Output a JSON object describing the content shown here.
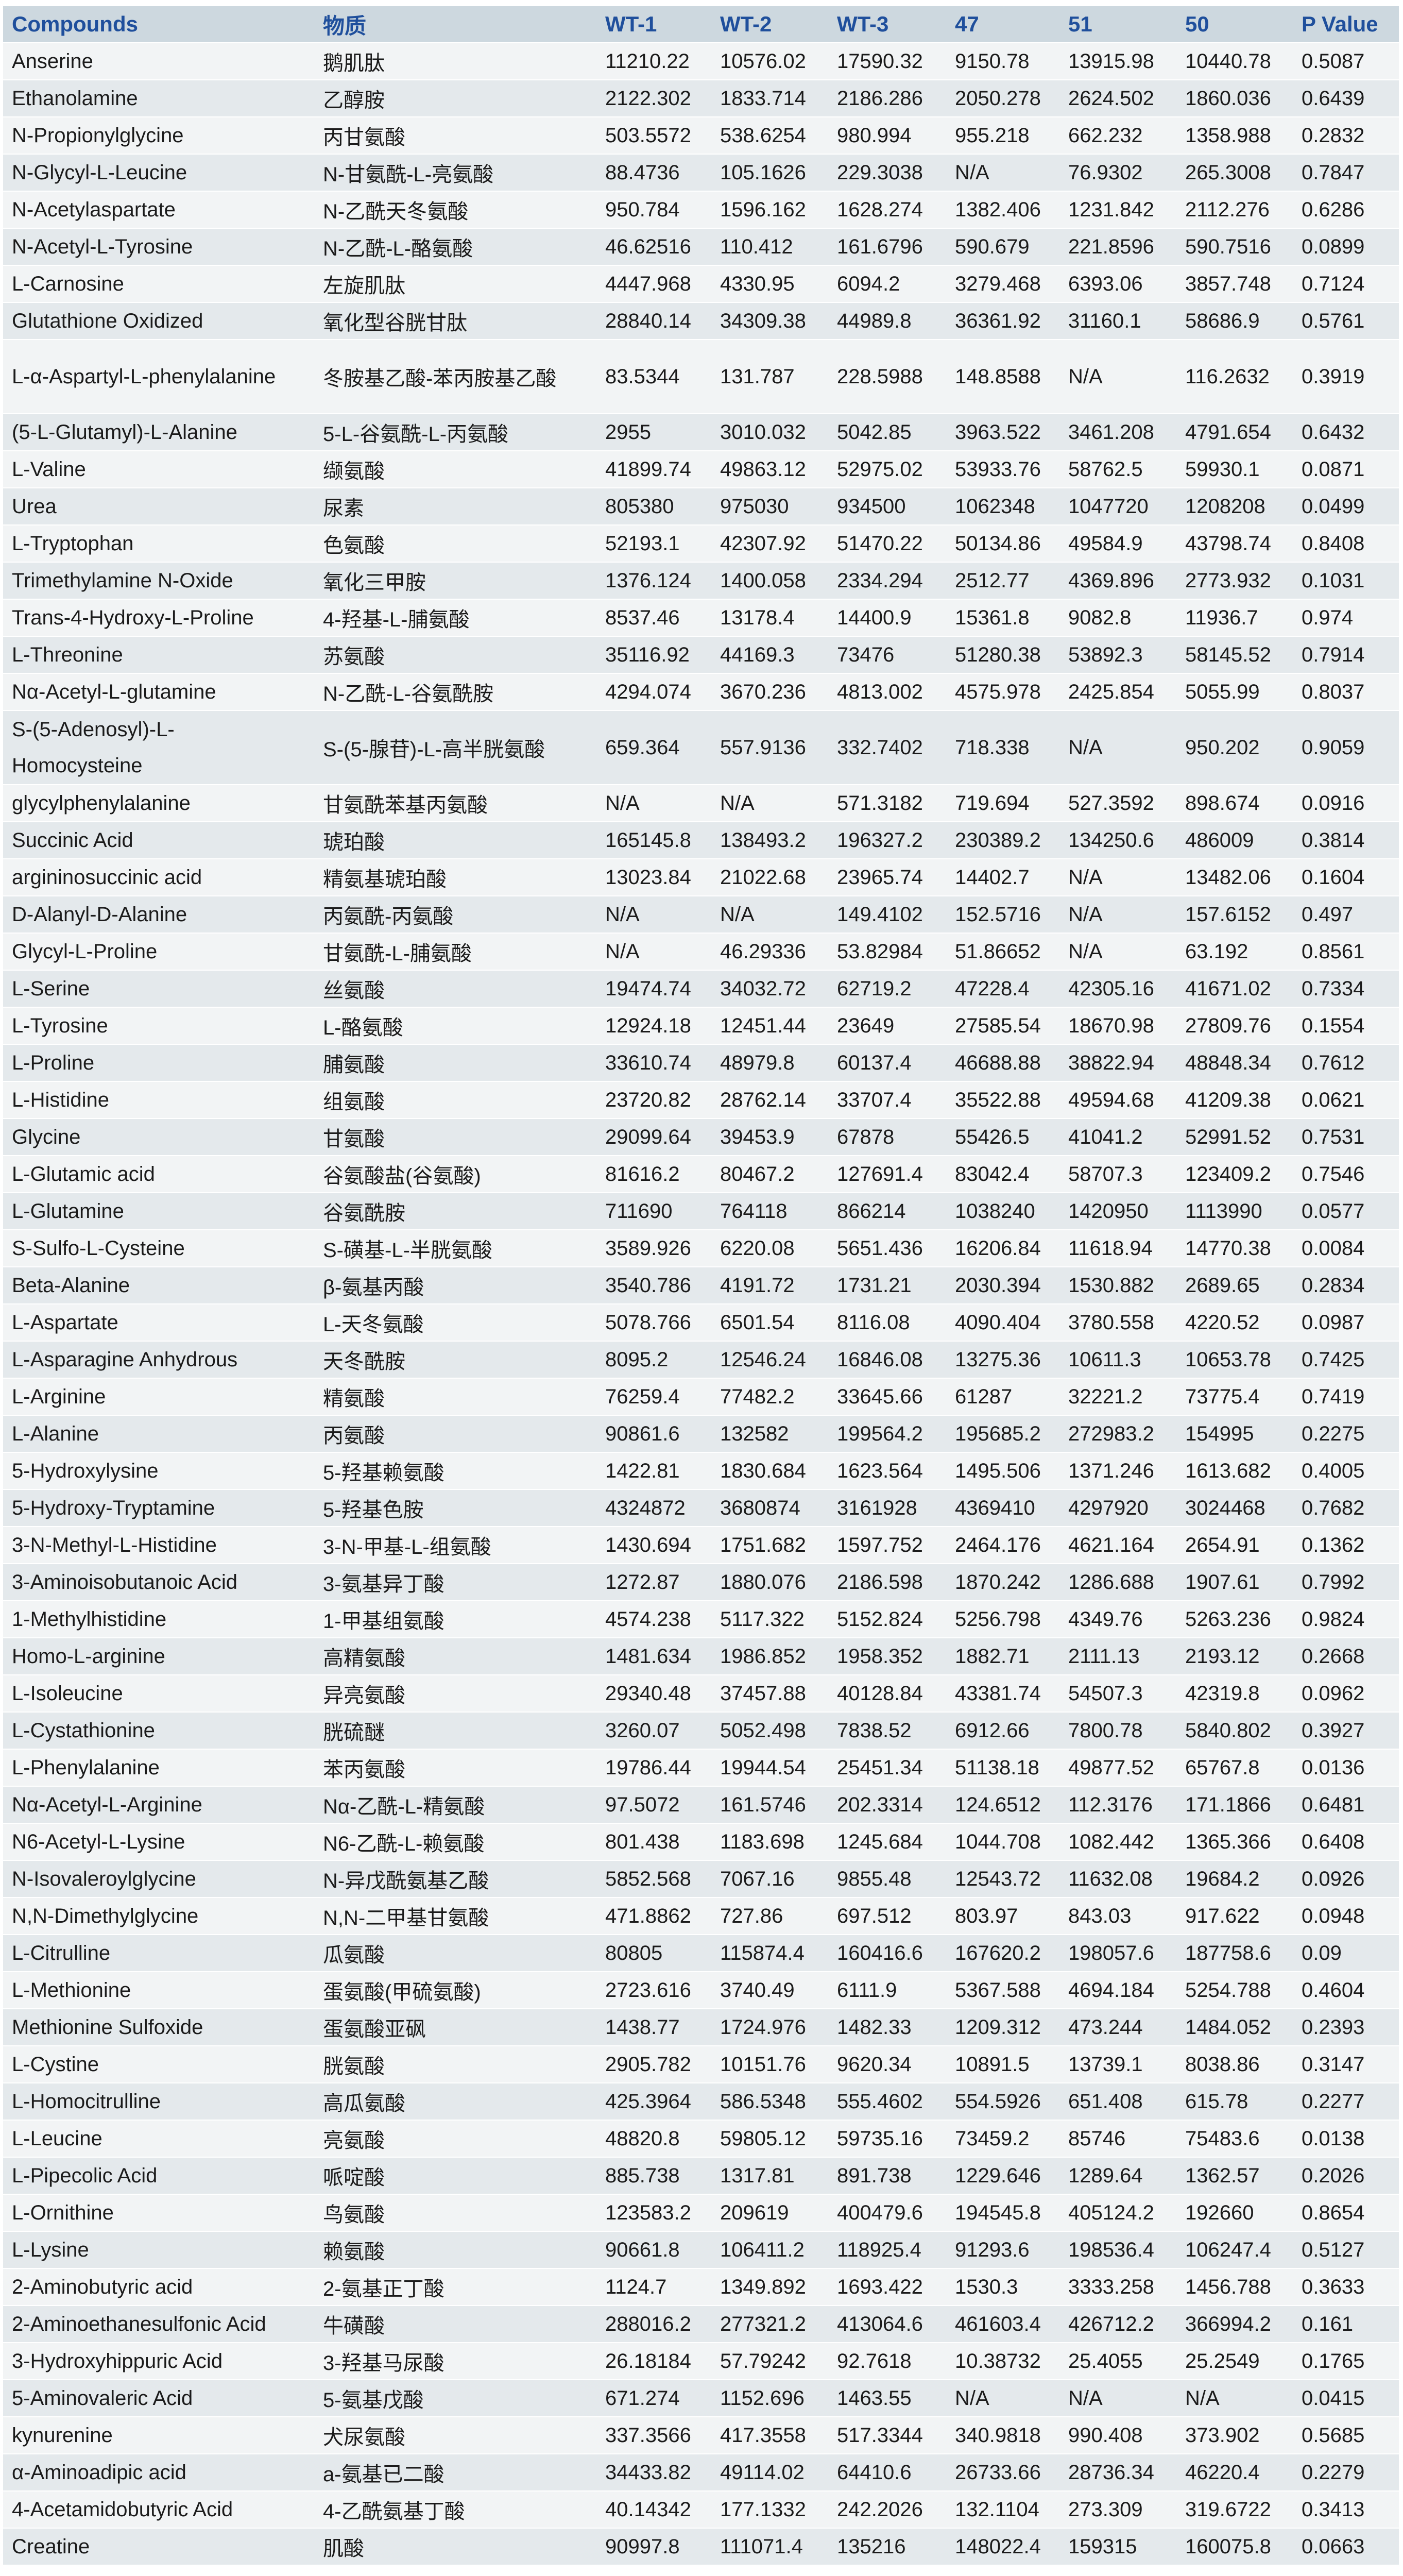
{
  "colors": {
    "header_bg": "#cdd8df",
    "header_text": "#1f4f9c",
    "row_light": "#f2f4f5",
    "row_dark": "#e4e9ec"
  },
  "table": {
    "columns": [
      "Compounds",
      "物质",
      "WT-1",
      "WT-2",
      "WT-3",
      "47",
      "51",
      "50",
      "P Value"
    ],
    "rows": [
      [
        "Anserine",
        "鹅肌肽",
        "11210.22",
        "10576.02",
        "17590.32",
        "9150.78",
        "13915.98",
        "10440.78",
        "0.5087"
      ],
      [
        "Ethanolamine",
        "乙醇胺",
        "2122.302",
        "1833.714",
        "2186.286",
        "2050.278",
        "2624.502",
        "1860.036",
        "0.6439"
      ],
      [
        "N-Propionylglycine",
        "丙甘氨酸",
        "503.5572",
        "538.6254",
        "980.994",
        "955.218",
        "662.232",
        "1358.988",
        "0.2832"
      ],
      [
        "N-Glycyl-L-Leucine",
        "N-甘氨酰-L-亮氨酸",
        "88.4736",
        "105.1626",
        "229.3038",
        "N/A",
        "76.9302",
        "265.3008",
        "0.7847"
      ],
      [
        "N-Acetylaspartate",
        "N-乙酰天冬氨酸",
        "950.784",
        "1596.162",
        "1628.274",
        "1382.406",
        "1231.842",
        "2112.276",
        "0.6286"
      ],
      [
        "N-Acetyl-L-Tyrosine",
        "N-乙酰-L-酪氨酸",
        "46.62516",
        "110.412",
        "161.6796",
        "590.679",
        "221.8596",
        "590.7516",
        "0.0899"
      ],
      [
        "L-Carnosine",
        "左旋肌肽",
        "4447.968",
        "4330.95",
        "6094.2",
        "3279.468",
        "6393.06",
        "3857.748",
        "0.7124"
      ],
      [
        "Glutathione Oxidized",
        "氧化型谷胱甘肽",
        "28840.14",
        "34309.38",
        "44989.8",
        "36361.92",
        "31160.1",
        "58686.9",
        "0.5761"
      ],
      [
        "L-α-Aspartyl-L-phenylalanine",
        "冬胺基乙酸-苯丙胺基乙酸",
        "83.5344",
        "131.787",
        "228.5988",
        "148.8588",
        "N/A",
        "116.2632",
        "0.3919"
      ],
      [
        "(5-L-Glutamyl)-L-Alanine",
        "5-L-谷氨酰-L-丙氨酸",
        "2955",
        "3010.032",
        "5042.85",
        "3963.522",
        "3461.208",
        "4791.654",
        "0.6432"
      ],
      [
        "L-Valine",
        "缬氨酸",
        "41899.74",
        "49863.12",
        "52975.02",
        "53933.76",
        "58762.5",
        "59930.1",
        "0.0871"
      ],
      [
        "Urea",
        "尿素",
        "805380",
        "975030",
        "934500",
        "1062348",
        "1047720",
        "1208208",
        "0.0499"
      ],
      [
        "L-Tryptophan",
        "色氨酸",
        "52193.1",
        "42307.92",
        "51470.22",
        "50134.86",
        "49584.9",
        "43798.74",
        "0.8408"
      ],
      [
        "Trimethylamine N-Oxide",
        "氧化三甲胺",
        "1376.124",
        "1400.058",
        "2334.294",
        "2512.77",
        "4369.896",
        "2773.932",
        "0.1031"
      ],
      [
        "Trans-4-Hydroxy-L-Proline",
        "4-羟基-L-脯氨酸",
        "8537.46",
        "13178.4",
        "14400.9",
        "15361.8",
        "9082.8",
        "11936.7",
        "0.974"
      ],
      [
        "L-Threonine",
        "苏氨酸",
        "35116.92",
        "44169.3",
        "73476",
        "51280.38",
        "53892.3",
        "58145.52",
        "0.7914"
      ],
      [
        "Nα-Acetyl-L-glutamine",
        "N-乙酰-L-谷氨酰胺",
        "4294.074",
        "3670.236",
        "4813.002",
        "4575.978",
        "2425.854",
        "5055.99",
        "0.8037"
      ],
      [
        "S-(5-Adenosyl)-L-Homocysteine",
        "S-(5-腺苷)-L-高半胱氨酸",
        "659.364",
        "557.9136",
        "332.7402",
        "718.338",
        "N/A",
        "950.202",
        "0.9059"
      ],
      [
        "glycylphenylalanine",
        "甘氨酰苯基丙氨酸",
        "N/A",
        "N/A",
        "571.3182",
        "719.694",
        "527.3592",
        "898.674",
        "0.0916"
      ],
      [
        "Succinic Acid",
        "琥珀酸",
        "165145.8",
        "138493.2",
        "196327.2",
        "230389.2",
        "134250.6",
        "486009",
        "0.3814"
      ],
      [
        "argininosuccinic acid",
        "精氨基琥珀酸",
        "13023.84",
        "21022.68",
        "23965.74",
        "14402.7",
        "N/A",
        "13482.06",
        "0.1604"
      ],
      [
        "D-Alanyl-D-Alanine",
        "丙氨酰-丙氨酸",
        "N/A",
        "N/A",
        "149.4102",
        "152.5716",
        "N/A",
        "157.6152",
        "0.497"
      ],
      [
        "Glycyl-L-Proline",
        "甘氨酰-L-脯氨酸",
        "N/A",
        "46.29336",
        "53.82984",
        "51.86652",
        "N/A",
        "63.192",
        "0.8561"
      ],
      [
        "L-Serine",
        "丝氨酸",
        "19474.74",
        "34032.72",
        "62719.2",
        "47228.4",
        "42305.16",
        "41671.02",
        "0.7334"
      ],
      [
        "L-Tyrosine",
        "L-酪氨酸",
        "12924.18",
        "12451.44",
        "23649",
        "27585.54",
        "18670.98",
        "27809.76",
        "0.1554"
      ],
      [
        "L-Proline",
        "脯氨酸",
        "33610.74",
        "48979.8",
        "60137.4",
        "46688.88",
        "38822.94",
        "48848.34",
        "0.7612"
      ],
      [
        "L-Histidine",
        "组氨酸",
        "23720.82",
        "28762.14",
        "33707.4",
        "35522.88",
        "49594.68",
        "41209.38",
        "0.0621"
      ],
      [
        "Glycine",
        "甘氨酸",
        "29099.64",
        "39453.9",
        "67878",
        "55426.5",
        "41041.2",
        "52991.52",
        "0.7531"
      ],
      [
        "L-Glutamic acid",
        "谷氨酸盐(谷氨酸)",
        "81616.2",
        "80467.2",
        "127691.4",
        "83042.4",
        "58707.3",
        "123409.2",
        "0.7546"
      ],
      [
        "L-Glutamine",
        "谷氨酰胺",
        "711690",
        "764118",
        "866214",
        "1038240",
        "1420950",
        "1113990",
        "0.0577"
      ],
      [
        "S-Sulfo-L-Cysteine",
        "S-磺基-L-半胱氨酸",
        "3589.926",
        "6220.08",
        "5651.436",
        "16206.84",
        "11618.94",
        "14770.38",
        "0.0084"
      ],
      [
        "Beta-Alanine",
        "β-氨基丙酸",
        "3540.786",
        "4191.72",
        "1731.21",
        "2030.394",
        "1530.882",
        "2689.65",
        "0.2834"
      ],
      [
        "L-Aspartate",
        "L-天冬氨酸",
        "5078.766",
        "6501.54",
        "8116.08",
        "4090.404",
        "3780.558",
        "4220.52",
        "0.0987"
      ],
      [
        "L-Asparagine Anhydrous",
        "天冬酰胺",
        "8095.2",
        "12546.24",
        "16846.08",
        "13275.36",
        "10611.3",
        "10653.78",
        "0.7425"
      ],
      [
        "L-Arginine",
        "精氨酸",
        "76259.4",
        "77482.2",
        "33645.66",
        "61287",
        "32221.2",
        "73775.4",
        "0.7419"
      ],
      [
        "L-Alanine",
        "丙氨酸",
        "90861.6",
        "132582",
        "199564.2",
        "195685.2",
        "272983.2",
        "154995",
        "0.2275"
      ],
      [
        "5-Hydroxylysine",
        "5-羟基赖氨酸",
        "1422.81",
        "1830.684",
        "1623.564",
        "1495.506",
        "1371.246",
        "1613.682",
        "0.4005"
      ],
      [
        "5-Hydroxy-Tryptamine",
        "5-羟基色胺",
        "4324872",
        "3680874",
        "3161928",
        "4369410",
        "4297920",
        "3024468",
        "0.7682"
      ],
      [
        "3-N-Methyl-L-Histidine",
        "3-N-甲基-L-组氨酸",
        "1430.694",
        "1751.682",
        "1597.752",
        "2464.176",
        "4621.164",
        "2654.91",
        "0.1362"
      ],
      [
        "3-Aminoisobutanoic Acid",
        "3-氨基异丁酸",
        "1272.87",
        "1880.076",
        "2186.598",
        "1870.242",
        "1286.688",
        "1907.61",
        "0.7992"
      ],
      [
        "1-Methylhistidine",
        "1-甲基组氨酸",
        "4574.238",
        "5117.322",
        "5152.824",
        "5256.798",
        "4349.76",
        "5263.236",
        "0.9824"
      ],
      [
        "Homo-L-arginine",
        "高精氨酸",
        "1481.634",
        "1986.852",
        "1958.352",
        "1882.71",
        "2111.13",
        "2193.12",
        "0.2668"
      ],
      [
        "L-Isoleucine",
        "异亮氨酸",
        "29340.48",
        "37457.88",
        "40128.84",
        "43381.74",
        "54507.3",
        "42319.8",
        "0.0962"
      ],
      [
        "L-Cystathionine",
        "胱硫醚",
        "3260.07",
        "5052.498",
        "7838.52",
        "6912.66",
        "7800.78",
        "5840.802",
        "0.3927"
      ],
      [
        "L-Phenylalanine",
        "苯丙氨酸",
        "19786.44",
        "19944.54",
        "25451.34",
        "51138.18",
        "49877.52",
        "65767.8",
        "0.0136"
      ],
      [
        "Nα-Acetyl-L-Arginine",
        "Nα-乙酰-L-精氨酸",
        "97.5072",
        "161.5746",
        "202.3314",
        "124.6512",
        "112.3176",
        "171.1866",
        "0.6481"
      ],
      [
        "N6-Acetyl-L-Lysine",
        "N6-乙酰-L-赖氨酸",
        "801.438",
        "1183.698",
        "1245.684",
        "1044.708",
        "1082.442",
        "1365.366",
        "0.6408"
      ],
      [
        "N-Isovaleroylglycine",
        "N-异戊酰氨基乙酸",
        "5852.568",
        "7067.16",
        "9855.48",
        "12543.72",
        "11632.08",
        "19684.2",
        "0.0926"
      ],
      [
        "N,N-Dimethylglycine",
        "N,N-二甲基甘氨酸",
        "471.8862",
        "727.86",
        "697.512",
        "803.97",
        "843.03",
        "917.622",
        "0.0948"
      ],
      [
        "L-Citrulline",
        "瓜氨酸",
        "80805",
        "115874.4",
        "160416.6",
        "167620.2",
        "198057.6",
        "187758.6",
        "0.09"
      ],
      [
        "L-Methionine",
        "蛋氨酸(甲硫氨酸)",
        "2723.616",
        "3740.49",
        "6111.9",
        "5367.588",
        "4694.184",
        "5254.788",
        "0.4604"
      ],
      [
        "Methionine Sulfoxide",
        "蛋氨酸亚砜",
        "1438.77",
        "1724.976",
        "1482.33",
        "1209.312",
        "473.244",
        "1484.052",
        "0.2393"
      ],
      [
        "L-Cystine",
        "胱氨酸",
        "2905.782",
        "10151.76",
        "9620.34",
        "10891.5",
        "13739.1",
        "8038.86",
        "0.3147"
      ],
      [
        "L-Homocitrulline",
        "高瓜氨酸",
        "425.3964",
        "586.5348",
        "555.4602",
        "554.5926",
        "651.408",
        "615.78",
        "0.2277"
      ],
      [
        "L-Leucine",
        "亮氨酸",
        "48820.8",
        "59805.12",
        "59735.16",
        "73459.2",
        "85746",
        "75483.6",
        "0.0138"
      ],
      [
        "L-Pipecolic Acid",
        "哌啶酸",
        "885.738",
        "1317.81",
        "891.738",
        "1229.646",
        "1289.64",
        "1362.57",
        "0.2026"
      ],
      [
        "L-Ornithine",
        "鸟氨酸",
        "123583.2",
        "209619",
        "400479.6",
        "194545.8",
        "405124.2",
        "192660",
        "0.8654"
      ],
      [
        "L-Lysine",
        "赖氨酸",
        "90661.8",
        "106411.2",
        "118925.4",
        "91293.6",
        "198536.4",
        "106247.4",
        "0.5127"
      ],
      [
        "2-Aminobutyric acid",
        "2-氨基正丁酸",
        "1124.7",
        "1349.892",
        "1693.422",
        "1530.3",
        "3333.258",
        "1456.788",
        "0.3633"
      ],
      [
        "2-Aminoethanesulfonic Acid",
        "牛磺酸",
        "288016.2",
        "277321.2",
        "413064.6",
        "461603.4",
        "426712.2",
        "366994.2",
        "0.161"
      ],
      [
        "3-Hydroxyhippuric Acid",
        "3-羟基马尿酸",
        "26.18184",
        "57.79242",
        "92.7618",
        "10.38732",
        "25.4055",
        "25.2549",
        "0.1765"
      ],
      [
        "5-Aminovaleric Acid",
        "5-氨基戊酸",
        "671.274",
        "1152.696",
        "1463.55",
        "N/A",
        "N/A",
        "N/A",
        "0.0415"
      ],
      [
        "kynurenine",
        "犬尿氨酸",
        "337.3566",
        "417.3558",
        "517.3344",
        "340.9818",
        "990.408",
        "373.902",
        "0.5685"
      ],
      [
        "α-Aminoadipic acid",
        "a-氨基已二酸",
        "34433.82",
        "49114.02",
        "64410.6",
        "26733.66",
        "28736.34",
        "46220.4",
        "0.2279"
      ],
      [
        "4-Acetamidobutyric Acid",
        "4-乙酰氨基丁酸",
        "40.14342",
        "177.1332",
        "242.2026",
        "132.1104",
        "273.309",
        "319.6722",
        "0.3413"
      ],
      [
        "Creatine",
        "肌酸",
        "90997.8",
        "111071.4",
        "135216",
        "148022.4",
        "159315",
        "160075.8",
        "0.0663"
      ]
    ]
  }
}
